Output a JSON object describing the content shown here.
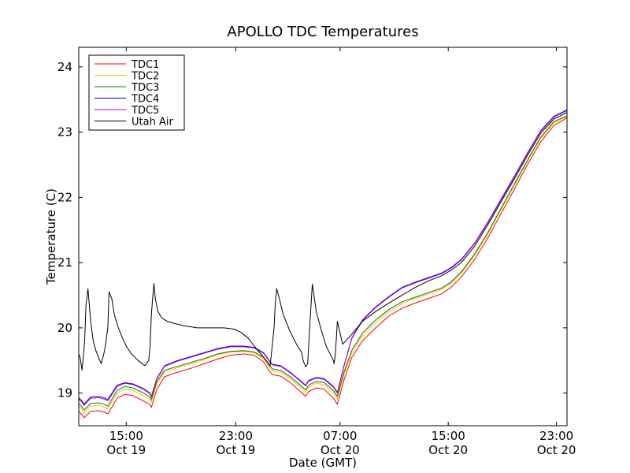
{
  "chart_data": {
    "type": "line",
    "title": "APOLLO TDC Temperatures",
    "xlabel": "Date (GMT)",
    "ylabel": "Temperature (C)",
    "x_unit": "hours since Oct 19 11:00 GMT",
    "xlim": [
      0,
      37
    ],
    "ylim": [
      18.5,
      24.3
    ],
    "yticks": [
      19,
      20,
      21,
      22,
      23,
      24
    ],
    "xticks": [
      {
        "value": 3.6,
        "time": "15:00",
        "date": "Oct 19"
      },
      {
        "value": 11.9,
        "time": "23:00",
        "date": "Oct 19"
      },
      {
        "value": 19.8,
        "time": "07:00",
        "date": "Oct 20"
      },
      {
        "value": 28.0,
        "time": "15:00",
        "date": "Oct 20"
      },
      {
        "value": 36.2,
        "time": "23:00",
        "date": "Oct 20"
      }
    ],
    "legend": {
      "position": "top-left"
    },
    "series": [
      {
        "name": "TDC1",
        "color": "#ff0000",
        "x": [
          0,
          0.2,
          0.4,
          0.9,
          1.5,
          1.9,
          2.2,
          2.9,
          3.5,
          4.1,
          4.9,
          5.4,
          5.5,
          5.9,
          6.5,
          7.5,
          8.5,
          9.5,
          10.5,
          11.5,
          12.5,
          13.3,
          14.0,
          14.5,
          14.7,
          15.3,
          16.1,
          17.2,
          17.4,
          18.0,
          18.6,
          19.3,
          19.6,
          20.1,
          20.7,
          21.5,
          22.5,
          23.5,
          24.5,
          25.5,
          26.5,
          27.5,
          28.2,
          29.0,
          30.0,
          31.0,
          32.0,
          33.0,
          34.0,
          35.0,
          36.0,
          37.0
        ],
        "values": [
          18.72,
          18.68,
          18.62,
          18.72,
          18.73,
          18.71,
          18.68,
          18.92,
          18.98,
          18.96,
          18.88,
          18.82,
          18.78,
          19.05,
          19.25,
          19.32,
          19.38,
          19.45,
          19.52,
          19.58,
          19.6,
          19.58,
          19.48,
          19.32,
          19.28,
          19.26,
          19.15,
          18.95,
          19.02,
          19.08,
          19.06,
          18.92,
          18.83,
          19.2,
          19.55,
          19.8,
          20.0,
          20.18,
          20.3,
          20.38,
          20.45,
          20.52,
          20.62,
          20.78,
          21.05,
          21.38,
          21.75,
          22.12,
          22.5,
          22.85,
          23.1,
          23.22
        ]
      },
      {
        "name": "TDC2",
        "color": "#ffbb00",
        "x": [
          0,
          0.2,
          0.4,
          0.9,
          1.5,
          1.9,
          2.2,
          2.9,
          3.5,
          4.1,
          4.9,
          5.4,
          5.5,
          5.9,
          6.5,
          7.5,
          8.5,
          9.5,
          10.5,
          11.5,
          12.5,
          13.3,
          14.0,
          14.5,
          14.7,
          15.3,
          16.1,
          17.2,
          17.4,
          18.0,
          18.6,
          19.3,
          19.6,
          20.1,
          20.7,
          21.5,
          22.5,
          23.5,
          24.5,
          25.5,
          26.5,
          27.5,
          28.2,
          29.0,
          30.0,
          31.0,
          32.0,
          33.0,
          34.0,
          35.0,
          36.0,
          37.0
        ],
        "values": [
          18.8,
          18.76,
          18.7,
          18.8,
          18.81,
          18.79,
          18.76,
          19.0,
          19.06,
          19.04,
          18.96,
          18.9,
          18.86,
          19.13,
          19.32,
          19.39,
          19.45,
          19.51,
          19.58,
          19.63,
          19.64,
          19.62,
          19.53,
          19.38,
          19.34,
          19.32,
          19.21,
          19.02,
          19.09,
          19.15,
          19.13,
          19.0,
          18.91,
          19.28,
          19.62,
          19.88,
          20.08,
          20.25,
          20.37,
          20.45,
          20.52,
          20.59,
          20.68,
          20.84,
          21.11,
          21.44,
          21.81,
          22.18,
          22.55,
          22.9,
          23.14,
          23.24
        ]
      },
      {
        "name": "TDC3",
        "color": "#008000",
        "x": [
          0,
          0.2,
          0.4,
          0.9,
          1.5,
          1.9,
          2.2,
          2.9,
          3.5,
          4.1,
          4.9,
          5.4,
          5.5,
          5.9,
          6.5,
          7.5,
          8.5,
          9.5,
          10.5,
          11.5,
          12.5,
          13.3,
          14.0,
          14.5,
          14.7,
          15.3,
          16.1,
          17.2,
          17.4,
          18.0,
          18.6,
          19.3,
          19.6,
          20.1,
          20.7,
          21.5,
          22.5,
          23.5,
          24.5,
          25.5,
          26.5,
          27.5,
          28.2,
          29.0,
          30.0,
          31.0,
          32.0,
          33.0,
          34.0,
          35.0,
          36.0,
          37.0
        ],
        "values": [
          18.84,
          18.8,
          18.74,
          18.84,
          18.85,
          18.83,
          18.8,
          19.04,
          19.1,
          19.08,
          19.0,
          18.94,
          18.9,
          19.17,
          19.35,
          19.41,
          19.47,
          19.53,
          19.6,
          19.64,
          19.65,
          19.63,
          19.55,
          19.41,
          19.37,
          19.35,
          19.24,
          19.05,
          19.12,
          19.18,
          19.16,
          19.04,
          18.95,
          19.32,
          19.66,
          19.92,
          20.12,
          20.28,
          20.4,
          20.47,
          20.54,
          20.61,
          20.7,
          20.86,
          21.13,
          21.46,
          21.83,
          22.2,
          22.57,
          22.92,
          23.16,
          23.25
        ]
      },
      {
        "name": "TDC4",
        "color": "#0000ff",
        "x": [
          0,
          0.2,
          0.4,
          0.9,
          1.5,
          1.9,
          2.2,
          2.9,
          3.5,
          4.1,
          4.9,
          5.4,
          5.5,
          5.9,
          6.5,
          7.5,
          8.5,
          9.5,
          10.5,
          11.5,
          12.5,
          13.3,
          14.0,
          14.5,
          14.7,
          15.3,
          16.1,
          17.2,
          17.4,
          18.0,
          18.6,
          19.3,
          19.6,
          20.1,
          20.7,
          21.5,
          22.5,
          23.5,
          24.5,
          25.5,
          26.5,
          27.5,
          28.2,
          29.0,
          30.0,
          31.0,
          32.0,
          33.0,
          34.0,
          35.0,
          36.0,
          37.0
        ],
        "values": [
          18.93,
          18.89,
          18.83,
          18.94,
          18.95,
          18.93,
          18.9,
          19.12,
          19.16,
          19.14,
          19.07,
          19.0,
          18.95,
          19.22,
          19.42,
          19.5,
          19.56,
          19.62,
          19.68,
          19.72,
          19.72,
          19.7,
          19.62,
          19.48,
          19.44,
          19.42,
          19.31,
          19.12,
          19.19,
          19.24,
          19.22,
          19.1,
          19.01,
          19.42,
          19.85,
          20.12,
          20.32,
          20.48,
          20.62,
          20.7,
          20.77,
          20.84,
          20.92,
          21.05,
          21.3,
          21.62,
          21.97,
          22.32,
          22.68,
          23.02,
          23.24,
          23.34
        ]
      },
      {
        "name": "TDC5",
        "color": "#bf00bf",
        "x": [
          0,
          0.2,
          0.4,
          0.9,
          1.5,
          1.9,
          2.2,
          2.9,
          3.5,
          4.1,
          4.9,
          5.4,
          5.5,
          5.9,
          6.5,
          7.5,
          8.5,
          9.5,
          10.5,
          11.5,
          12.5,
          13.3,
          14.0,
          14.5,
          14.7,
          15.3,
          16.1,
          17.2,
          17.4,
          18.0,
          18.6,
          19.3,
          19.6,
          20.1,
          20.7,
          21.5,
          22.5,
          23.5,
          24.5,
          25.5,
          26.5,
          27.5,
          28.2,
          29.0,
          30.0,
          31.0,
          32.0,
          33.0,
          34.0,
          35.0,
          36.0,
          37.0
        ],
        "values": [
          18.91,
          18.87,
          18.81,
          18.92,
          18.93,
          18.91,
          18.88,
          19.1,
          19.15,
          19.13,
          19.06,
          18.99,
          18.94,
          19.21,
          19.41,
          19.49,
          19.55,
          19.61,
          19.67,
          19.71,
          19.71,
          19.69,
          19.61,
          19.47,
          19.43,
          19.41,
          19.3,
          19.11,
          19.18,
          19.23,
          19.21,
          19.09,
          19.0,
          19.41,
          19.84,
          20.11,
          20.31,
          20.47,
          20.61,
          20.69,
          20.76,
          20.83,
          20.91,
          21.04,
          21.29,
          21.61,
          21.96,
          22.31,
          22.67,
          23.01,
          23.23,
          23.33
        ]
      },
      {
        "name": "Utah Air",
        "color": "#000000",
        "x": [
          0,
          0.1,
          0.25,
          0.45,
          0.55,
          0.7,
          0.9,
          1.1,
          1.3,
          1.5,
          1.7,
          1.9,
          2.0,
          2.2,
          2.3,
          2.5,
          2.7,
          3.0,
          3.3,
          3.6,
          4.0,
          4.5,
          5.0,
          5.3,
          5.4,
          5.5,
          5.6,
          5.7,
          5.8,
          6.0,
          6.3,
          6.7,
          7.2,
          8.0,
          9.0,
          10.0,
          11.0,
          11.8,
          12.3,
          12.8,
          13.3,
          13.8,
          14.2,
          14.5,
          14.6,
          14.8,
          14.9,
          15.0,
          15.2,
          15.5,
          16.0,
          16.5,
          16.9,
          17.0,
          17.2,
          17.35,
          17.5,
          17.7,
          18.0,
          18.4,
          18.7,
          18.8,
          19.3,
          19.35,
          19.45,
          19.6,
          20.0,
          20.6,
          21.5,
          22.5,
          23.5,
          24.5,
          25.5,
          26.5,
          27.5,
          28.2,
          29.0,
          30.0,
          31.0,
          32.0,
          33.0,
          34.0,
          35.0,
          36.0,
          37.0
        ],
        "values": [
          19.6,
          19.55,
          19.35,
          19.8,
          20.35,
          20.6,
          20.1,
          19.8,
          19.65,
          19.55,
          19.45,
          19.6,
          19.7,
          20.0,
          20.55,
          20.45,
          20.2,
          20.0,
          19.85,
          19.72,
          19.6,
          19.5,
          19.42,
          19.5,
          19.7,
          20.2,
          20.45,
          20.68,
          20.45,
          20.25,
          20.15,
          20.1,
          20.07,
          20.03,
          20.0,
          20.0,
          20.0,
          19.98,
          19.93,
          19.85,
          19.72,
          19.6,
          19.5,
          19.42,
          19.6,
          20.0,
          20.4,
          20.6,
          20.45,
          20.2,
          19.95,
          19.75,
          19.62,
          19.5,
          19.4,
          19.45,
          20.0,
          20.67,
          20.25,
          19.95,
          19.75,
          19.7,
          19.5,
          19.45,
          19.6,
          20.1,
          19.75,
          19.88,
          20.1,
          20.25,
          20.38,
          20.5,
          20.62,
          20.72,
          20.8,
          20.88,
          21.0,
          21.25,
          21.58,
          21.93,
          22.28,
          22.64,
          22.98,
          23.2,
          23.3
        ]
      }
    ]
  }
}
